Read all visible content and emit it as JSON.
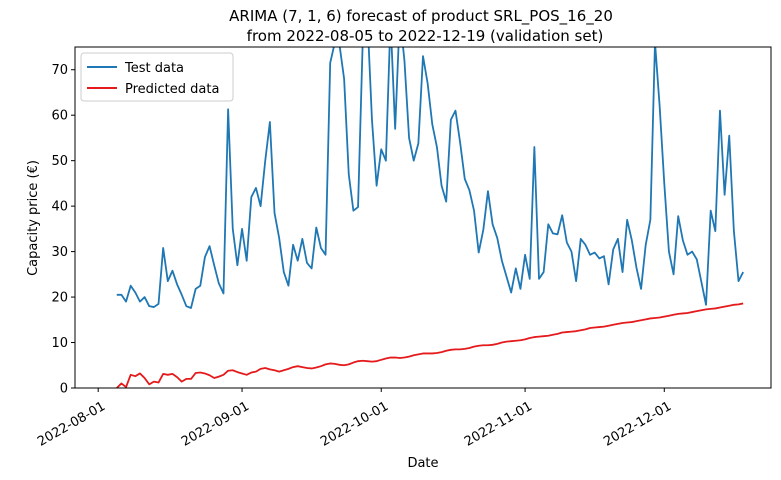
{
  "chart_data": {
    "type": "line",
    "title_line1": "ARIMA (7, 1, 6) forecast of product SRL_POS_16_20",
    "title_line2": "from 2022-08-05 to 2022-12-19 (validation set)",
    "xlabel": "Date",
    "ylabel": "Capacity price (€)",
    "xlim": [
      "2022-07-27",
      "2022-12-24"
    ],
    "ylim": [
      0,
      75
    ],
    "x_ticks": [
      "2022-08-01",
      "2022-09-01",
      "2022-10-01",
      "2022-11-01",
      "2022-12-01"
    ],
    "y_ticks": [
      0,
      10,
      20,
      30,
      40,
      50,
      60,
      70
    ],
    "grid": false,
    "legend_position": "top-left",
    "series": [
      {
        "name": "Test data",
        "color": "#1f77b4",
        "points": [
          [
            "2022-08-05",
            20.5
          ],
          [
            "2022-08-06",
            20.5
          ],
          [
            "2022-08-07",
            19.0
          ],
          [
            "2022-08-08",
            22.5
          ],
          [
            "2022-08-09",
            21.0
          ],
          [
            "2022-08-10",
            19.0
          ],
          [
            "2022-08-11",
            20.0
          ],
          [
            "2022-08-12",
            18.0
          ],
          [
            "2022-08-13",
            17.8
          ],
          [
            "2022-08-14",
            18.5
          ],
          [
            "2022-08-15",
            30.8
          ],
          [
            "2022-08-16",
            23.5
          ],
          [
            "2022-08-17",
            25.8
          ],
          [
            "2022-08-18",
            22.8
          ],
          [
            "2022-08-19",
            20.5
          ],
          [
            "2022-08-20",
            18.0
          ],
          [
            "2022-08-21",
            17.6
          ],
          [
            "2022-08-22",
            21.8
          ],
          [
            "2022-08-23",
            22.5
          ],
          [
            "2022-08-24",
            28.8
          ],
          [
            "2022-08-25",
            31.2
          ],
          [
            "2022-08-26",
            27.0
          ],
          [
            "2022-08-27",
            23.0
          ],
          [
            "2022-08-28",
            20.8
          ],
          [
            "2022-08-29",
            61.3
          ],
          [
            "2022-08-30",
            35.0
          ],
          [
            "2022-08-31",
            27.0
          ],
          [
            "2022-09-01",
            35.0
          ],
          [
            "2022-09-02",
            28.0
          ],
          [
            "2022-09-03",
            42.0
          ],
          [
            "2022-09-04",
            44.0
          ],
          [
            "2022-09-05",
            40.0
          ],
          [
            "2022-09-06",
            50.0
          ],
          [
            "2022-09-07",
            58.5
          ],
          [
            "2022-09-08",
            38.5
          ],
          [
            "2022-09-09",
            33.0
          ],
          [
            "2022-09-10",
            25.5
          ],
          [
            "2022-09-11",
            22.5
          ],
          [
            "2022-09-12",
            31.5
          ],
          [
            "2022-09-13",
            28.0
          ],
          [
            "2022-09-14",
            32.8
          ],
          [
            "2022-09-15",
            27.5
          ],
          [
            "2022-09-16",
            26.3
          ],
          [
            "2022-09-17",
            35.3
          ],
          [
            "2022-09-18",
            30.8
          ],
          [
            "2022-09-19",
            29.3
          ],
          [
            "2022-09-20",
            71.5
          ],
          [
            "2022-09-21",
            76.0
          ],
          [
            "2022-09-22",
            75.5
          ],
          [
            "2022-09-23",
            68.0
          ],
          [
            "2022-09-24",
            47.0
          ],
          [
            "2022-09-25",
            39.0
          ],
          [
            "2022-09-26",
            39.8
          ],
          [
            "2022-09-27",
            76.0
          ],
          [
            "2022-09-28",
            82.0
          ],
          [
            "2022-09-29",
            59.0
          ],
          [
            "2022-09-30",
            44.5
          ],
          [
            "2022-10-01",
            52.5
          ],
          [
            "2022-10-02",
            50.0
          ],
          [
            "2022-10-03",
            81.0
          ],
          [
            "2022-10-04",
            57.0
          ],
          [
            "2022-10-05",
            82.0
          ],
          [
            "2022-10-06",
            72.0
          ],
          [
            "2022-10-07",
            55.0
          ],
          [
            "2022-10-08",
            50.0
          ],
          [
            "2022-10-09",
            53.8
          ],
          [
            "2022-10-10",
            73.0
          ],
          [
            "2022-10-11",
            67.0
          ],
          [
            "2022-10-12",
            58.0
          ],
          [
            "2022-10-13",
            53.0
          ],
          [
            "2022-10-14",
            44.5
          ],
          [
            "2022-10-15",
            41.0
          ],
          [
            "2022-10-16",
            59.0
          ],
          [
            "2022-10-17",
            61.0
          ],
          [
            "2022-10-18",
            54.0
          ],
          [
            "2022-10-19",
            46.0
          ],
          [
            "2022-10-20",
            43.5
          ],
          [
            "2022-10-21",
            39.0
          ],
          [
            "2022-10-22",
            29.8
          ],
          [
            "2022-10-23",
            34.8
          ],
          [
            "2022-10-24",
            43.3
          ],
          [
            "2022-10-25",
            36.0
          ],
          [
            "2022-10-26",
            33.0
          ],
          [
            "2022-10-27",
            28.0
          ],
          [
            "2022-10-28",
            24.5
          ],
          [
            "2022-10-29",
            21.0
          ],
          [
            "2022-10-30",
            26.3
          ],
          [
            "2022-10-31",
            21.8
          ],
          [
            "2022-11-01",
            29.3
          ],
          [
            "2022-11-02",
            24.0
          ],
          [
            "2022-11-03",
            53.0
          ],
          [
            "2022-11-04",
            24.0
          ],
          [
            "2022-11-05",
            25.5
          ],
          [
            "2022-11-06",
            36.0
          ],
          [
            "2022-11-07",
            34.0
          ],
          [
            "2022-11-08",
            33.8
          ],
          [
            "2022-11-09",
            38.0
          ],
          [
            "2022-11-10",
            32.0
          ],
          [
            "2022-11-11",
            30.0
          ],
          [
            "2022-11-12",
            23.5
          ],
          [
            "2022-11-13",
            32.8
          ],
          [
            "2022-11-14",
            31.5
          ],
          [
            "2022-11-15",
            29.3
          ],
          [
            "2022-11-16",
            29.8
          ],
          [
            "2022-11-17",
            28.5
          ],
          [
            "2022-11-18",
            29.0
          ],
          [
            "2022-11-19",
            22.8
          ],
          [
            "2022-11-20",
            30.5
          ],
          [
            "2022-11-21",
            32.8
          ],
          [
            "2022-11-22",
            25.5
          ],
          [
            "2022-11-23",
            37.0
          ],
          [
            "2022-11-24",
            32.5
          ],
          [
            "2022-11-25",
            26.5
          ],
          [
            "2022-11-26",
            21.8
          ],
          [
            "2022-11-27",
            31.5
          ],
          [
            "2022-11-28",
            37.0
          ],
          [
            "2022-11-29",
            76.0
          ],
          [
            "2022-11-30",
            62.0
          ],
          [
            "2022-12-01",
            45.0
          ],
          [
            "2022-12-02",
            30.0
          ],
          [
            "2022-12-03",
            25.0
          ],
          [
            "2022-12-04",
            37.8
          ],
          [
            "2022-12-05",
            32.5
          ],
          [
            "2022-12-06",
            29.3
          ],
          [
            "2022-12-07",
            30.0
          ],
          [
            "2022-12-08",
            28.3
          ],
          [
            "2022-12-09",
            23.3
          ],
          [
            "2022-12-10",
            18.3
          ],
          [
            "2022-12-11",
            39.0
          ],
          [
            "2022-12-12",
            34.5
          ],
          [
            "2022-12-13",
            61.0
          ],
          [
            "2022-12-14",
            42.5
          ],
          [
            "2022-12-15",
            55.5
          ],
          [
            "2022-12-16",
            34.5
          ],
          [
            "2022-12-17",
            23.5
          ],
          [
            "2022-12-18",
            25.5
          ]
        ]
      },
      {
        "name": "Predicted data",
        "color": "#e41a1c",
        "points": [
          [
            "2022-08-05",
            0.0
          ],
          [
            "2022-08-06",
            1.0
          ],
          [
            "2022-08-07",
            0.2
          ],
          [
            "2022-08-08",
            2.9
          ],
          [
            "2022-08-09",
            2.6
          ],
          [
            "2022-08-10",
            3.2
          ],
          [
            "2022-08-11",
            2.2
          ],
          [
            "2022-08-12",
            0.8
          ],
          [
            "2022-08-13",
            1.4
          ],
          [
            "2022-08-14",
            1.2
          ],
          [
            "2022-08-15",
            3.1
          ],
          [
            "2022-08-16",
            2.9
          ],
          [
            "2022-08-17",
            3.1
          ],
          [
            "2022-08-18",
            2.4
          ],
          [
            "2022-08-19",
            1.4
          ],
          [
            "2022-08-20",
            2.0
          ],
          [
            "2022-08-21",
            2.0
          ],
          [
            "2022-08-22",
            3.3
          ],
          [
            "2022-08-23",
            3.4
          ],
          [
            "2022-08-24",
            3.2
          ],
          [
            "2022-08-25",
            2.8
          ],
          [
            "2022-08-26",
            2.2
          ],
          [
            "2022-08-27",
            2.5
          ],
          [
            "2022-08-28",
            2.9
          ],
          [
            "2022-08-29",
            3.8
          ],
          [
            "2022-08-30",
            3.9
          ],
          [
            "2022-08-31",
            3.5
          ],
          [
            "2022-09-01",
            3.2
          ],
          [
            "2022-09-02",
            2.9
          ],
          [
            "2022-09-03",
            3.4
          ],
          [
            "2022-09-04",
            3.6
          ],
          [
            "2022-09-05",
            4.2
          ],
          [
            "2022-09-06",
            4.4
          ],
          [
            "2022-09-07",
            4.1
          ],
          [
            "2022-09-08",
            3.9
          ],
          [
            "2022-09-09",
            3.6
          ],
          [
            "2022-09-10",
            3.9
          ],
          [
            "2022-09-11",
            4.2
          ],
          [
            "2022-09-12",
            4.6
          ],
          [
            "2022-09-13",
            4.8
          ],
          [
            "2022-09-14",
            4.6
          ],
          [
            "2022-09-15",
            4.4
          ],
          [
            "2022-09-16",
            4.3
          ],
          [
            "2022-09-17",
            4.5
          ],
          [
            "2022-09-18",
            4.8
          ],
          [
            "2022-09-19",
            5.2
          ],
          [
            "2022-09-20",
            5.4
          ],
          [
            "2022-09-21",
            5.3
          ],
          [
            "2022-09-22",
            5.1
          ],
          [
            "2022-09-23",
            5.0
          ],
          [
            "2022-09-24",
            5.2
          ],
          [
            "2022-09-25",
            5.6
          ],
          [
            "2022-09-26",
            5.9
          ],
          [
            "2022-09-27",
            6.0
          ],
          [
            "2022-09-28",
            5.9
          ],
          [
            "2022-09-29",
            5.8
          ],
          [
            "2022-09-30",
            5.9
          ],
          [
            "2022-10-01",
            6.2
          ],
          [
            "2022-10-02",
            6.5
          ],
          [
            "2022-10-03",
            6.7
          ],
          [
            "2022-10-04",
            6.7
          ],
          [
            "2022-10-05",
            6.6
          ],
          [
            "2022-10-06",
            6.7
          ],
          [
            "2022-10-07",
            6.9
          ],
          [
            "2022-10-08",
            7.2
          ],
          [
            "2022-10-09",
            7.4
          ],
          [
            "2022-10-10",
            7.6
          ],
          [
            "2022-10-11",
            7.6
          ],
          [
            "2022-10-12",
            7.6
          ],
          [
            "2022-10-13",
            7.7
          ],
          [
            "2022-10-14",
            7.9
          ],
          [
            "2022-10-15",
            8.2
          ],
          [
            "2022-10-16",
            8.4
          ],
          [
            "2022-10-17",
            8.5
          ],
          [
            "2022-10-18",
            8.5
          ],
          [
            "2022-10-19",
            8.6
          ],
          [
            "2022-10-20",
            8.8
          ],
          [
            "2022-10-21",
            9.1
          ],
          [
            "2022-10-22",
            9.3
          ],
          [
            "2022-10-23",
            9.4
          ],
          [
            "2022-10-24",
            9.4
          ],
          [
            "2022-10-25",
            9.5
          ],
          [
            "2022-10-26",
            9.7
          ],
          [
            "2022-10-27",
            10.0
          ],
          [
            "2022-10-28",
            10.2
          ],
          [
            "2022-10-29",
            10.3
          ],
          [
            "2022-10-30",
            10.4
          ],
          [
            "2022-10-31",
            10.5
          ],
          [
            "2022-11-01",
            10.7
          ],
          [
            "2022-11-02",
            11.0
          ],
          [
            "2022-11-03",
            11.2
          ],
          [
            "2022-11-04",
            11.3
          ],
          [
            "2022-11-05",
            11.4
          ],
          [
            "2022-11-06",
            11.5
          ],
          [
            "2022-11-07",
            11.7
          ],
          [
            "2022-11-08",
            11.9
          ],
          [
            "2022-11-09",
            12.2
          ],
          [
            "2022-11-10",
            12.3
          ],
          [
            "2022-11-11",
            12.4
          ],
          [
            "2022-11-12",
            12.5
          ],
          [
            "2022-11-13",
            12.7
          ],
          [
            "2022-11-14",
            12.9
          ],
          [
            "2022-11-15",
            13.2
          ],
          [
            "2022-11-16",
            13.3
          ],
          [
            "2022-11-17",
            13.4
          ],
          [
            "2022-11-18",
            13.5
          ],
          [
            "2022-11-19",
            13.7
          ],
          [
            "2022-11-20",
            13.9
          ],
          [
            "2022-11-21",
            14.1
          ],
          [
            "2022-11-22",
            14.3
          ],
          [
            "2022-11-23",
            14.4
          ],
          [
            "2022-11-24",
            14.5
          ],
          [
            "2022-11-25",
            14.7
          ],
          [
            "2022-11-26",
            14.9
          ],
          [
            "2022-11-27",
            15.1
          ],
          [
            "2022-11-28",
            15.3
          ],
          [
            "2022-11-29",
            15.4
          ],
          [
            "2022-11-30",
            15.5
          ],
          [
            "2022-12-01",
            15.7
          ],
          [
            "2022-12-02",
            15.9
          ],
          [
            "2022-12-03",
            16.1
          ],
          [
            "2022-12-04",
            16.3
          ],
          [
            "2022-12-05",
            16.4
          ],
          [
            "2022-12-06",
            16.5
          ],
          [
            "2022-12-07",
            16.7
          ],
          [
            "2022-12-08",
            16.9
          ],
          [
            "2022-12-09",
            17.1
          ],
          [
            "2022-12-10",
            17.3
          ],
          [
            "2022-12-11",
            17.4
          ],
          [
            "2022-12-12",
            17.5
          ],
          [
            "2022-12-13",
            17.7
          ],
          [
            "2022-12-14",
            17.9
          ],
          [
            "2022-12-15",
            18.1
          ],
          [
            "2022-12-16",
            18.3
          ],
          [
            "2022-12-17",
            18.4
          ],
          [
            "2022-12-18",
            18.6
          ]
        ]
      }
    ]
  }
}
